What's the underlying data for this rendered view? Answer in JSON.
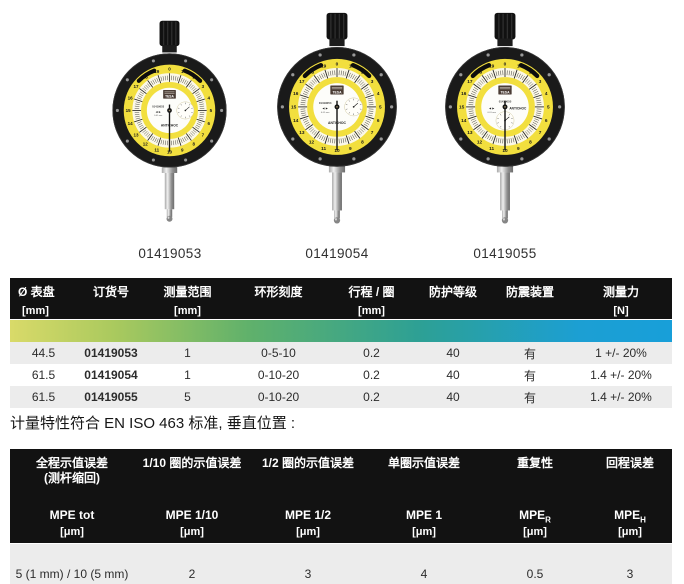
{
  "gauges": {
    "brand": "TESA",
    "dial_numbers": [
      "0",
      "1",
      "2",
      "3",
      "4",
      "5",
      "6",
      "7",
      "8",
      "9",
      "10",
      "11",
      "12",
      "13",
      "14",
      "15",
      "16",
      "17",
      "18",
      "19"
    ],
    "items": [
      {
        "caption": "01419053",
        "dial_text": "01419053",
        "antichoc": "ANTICHOC",
        "resolution": "0.01 mm",
        "subdial": "right"
      },
      {
        "caption": "01419054",
        "dial_text": "01419054",
        "antichoc": "ANTICHOC",
        "resolution": "0.01 mm",
        "subdial": "right"
      },
      {
        "caption": "01419055",
        "dial_text": "01419055",
        "antichoc": "ANTICHOC",
        "resolution": "0.01 mm",
        "subdial": "bottom"
      }
    ]
  },
  "spec_table": {
    "columns": [
      {
        "name": "Ø 表盘",
        "unit": "[mm]"
      },
      {
        "name": "订货号",
        "unit": ""
      },
      {
        "name": "测量范围",
        "unit": "[mm]"
      },
      {
        "name": "环形刻度",
        "unit": ""
      },
      {
        "name": "行程 / 圈",
        "unit": "[mm]"
      },
      {
        "name": "防护等级",
        "unit": ""
      },
      {
        "name": "防震装置",
        "unit": ""
      },
      {
        "name": "测量力",
        "unit": "[N]"
      }
    ],
    "rows": [
      [
        "44.5",
        "01419053",
        "1",
        "0-5-10",
        "0.2",
        "40",
        "有",
        "1 +/- 20%"
      ],
      [
        "61.5",
        "01419054",
        "1",
        "0-10-20",
        "0.2",
        "40",
        "有",
        "1.4 +/- 20%"
      ],
      [
        "61.5",
        "01419055",
        "5",
        "0-10-20",
        "0.2",
        "40",
        "有",
        "1.4 +/- 20%"
      ]
    ]
  },
  "note_text": "计量特性符合 EN ISO 463 标准, 垂直位置 :",
  "metro_table": {
    "columns": [
      {
        "name": "全程示值误差",
        "name2": "(测杆缩回)",
        "mpe": "MPE tot",
        "mpe_sub": "",
        "unit": "[μm]"
      },
      {
        "name": "1/10 圈的示值误差",
        "name2": "",
        "mpe": "MPE 1/10",
        "mpe_sub": "",
        "unit": "[μm]"
      },
      {
        "name": "1/2 圈的示值误差",
        "name2": "",
        "mpe": "MPE 1/2",
        "mpe_sub": "",
        "unit": "[μm]"
      },
      {
        "name": "单圈示值误差",
        "name2": "",
        "mpe": "MPE 1",
        "mpe_sub": "",
        "unit": "[μm]"
      },
      {
        "name": "重复性",
        "name2": "",
        "mpe": "MPE",
        "mpe_sub": "R",
        "unit": "[μm]"
      },
      {
        "name": "回程误差",
        "name2": "",
        "mpe": "MPE",
        "mpe_sub": "H",
        "unit": "[μm]"
      }
    ],
    "rows": [
      [
        "5 (1 mm) / 10 (5 mm)",
        "2",
        "3",
        "4",
        "0.5",
        "3"
      ]
    ]
  },
  "colors": {
    "header_bg": "#121212",
    "row_alt": "#ececec",
    "gradient_left": "#d9da69",
    "gradient_mid": "#2da095",
    "gradient_right": "#189fd9",
    "dial_yellow": "#f2df3e",
    "bezel_black": "#1a1a1a"
  }
}
